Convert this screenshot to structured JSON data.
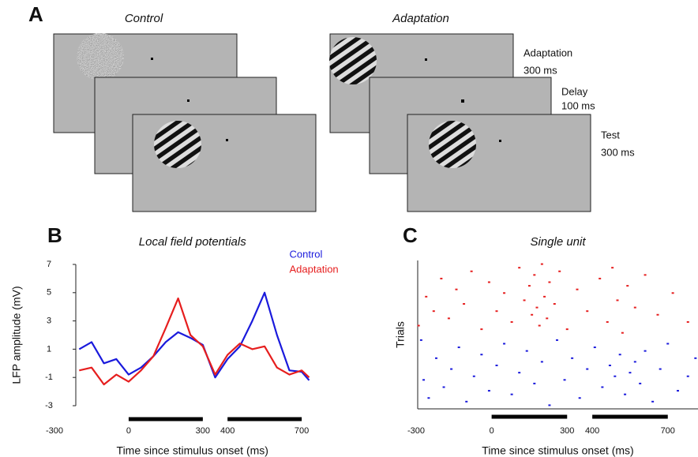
{
  "figure": {
    "panel_labels": [
      "A",
      "B",
      "C"
    ],
    "diagram": {
      "control_title": "Control",
      "adaptation_title": "Adaptation",
      "phases": [
        {
          "name": "Adaptation",
          "duration": "300 ms"
        },
        {
          "name": "Delay",
          "duration": "100 ms"
        },
        {
          "name": "Test",
          "duration": "300 ms"
        }
      ]
    }
  },
  "chart_data": [
    {
      "type": "line",
      "title": "Local field potentials",
      "x_label": "Time since stimulus onset (ms)",
      "y_label": "LFP amplitude (mV)",
      "x": [
        -200,
        -150,
        -100,
        -50,
        0,
        50,
        100,
        150,
        200,
        250,
        300,
        350,
        400,
        450,
        500,
        550,
        600,
        650,
        700,
        730
      ],
      "series": [
        {
          "name": "Control",
          "color": "#1a1adc",
          "values": [
            1.0,
            1.5,
            0,
            0.3,
            -0.8,
            -0.3,
            0.5,
            1.5,
            2.2,
            1.8,
            1.3,
            -1,
            0.3,
            1.2,
            3,
            5,
            2,
            -0.5,
            -0.6,
            -1.2
          ]
        },
        {
          "name": "Adaptation",
          "color": "#e61e1e",
          "values": [
            -0.5,
            -0.3,
            -1.5,
            -0.8,
            -1.3,
            -0.5,
            0.5,
            2.5,
            4.6,
            2,
            1.2,
            -0.8,
            0.6,
            1.4,
            1.0,
            1.2,
            -0.3,
            -0.8,
            -0.5,
            -1.0
          ]
        }
      ],
      "xlim": [
        -300,
        730
      ],
      "xticks": [
        -300,
        0,
        300,
        400,
        700
      ],
      "ylim": [
        -3,
        7
      ],
      "yticks": [
        -3,
        -1,
        1,
        3,
        5,
        7
      ],
      "stimulus_bars": [
        [
          0,
          300
        ],
        [
          400,
          700
        ]
      ],
      "legend": "top-right"
    },
    {
      "type": "scatter",
      "title": "Single unit",
      "x_label": "Time since stimulus onset (ms)",
      "y_label": "Trials",
      "xlim": [
        -300,
        820
      ],
      "xticks": [
        -300,
        0,
        300,
        400,
        700
      ],
      "ylim": [
        0,
        41
      ],
      "stimulus_bars": [
        [
          0,
          300
        ],
        [
          400,
          700
        ]
      ],
      "series": [
        {
          "color": "#e61e1e",
          "x": [
            -290,
            -260,
            -230,
            -200,
            -170,
            -140,
            -110,
            -80,
            -40,
            -10,
            20,
            50,
            80,
            110,
            130,
            150,
            160,
            170,
            180,
            190,
            200,
            210,
            220,
            230,
            250,
            270,
            300,
            340,
            380,
            430,
            460,
            480,
            500,
            520,
            540,
            570,
            610,
            660,
            720,
            780
          ],
          "values": [
            23,
            31,
            27,
            36,
            25,
            33,
            29,
            38,
            22,
            35,
            27,
            32,
            24,
            39,
            30,
            34,
            26,
            37,
            28,
            23,
            40,
            31,
            25,
            35,
            29,
            38,
            22,
            33,
            27,
            36,
            24,
            39,
            30,
            21,
            34,
            28,
            37,
            26,
            32,
            24
          ]
        },
        {
          "color": "#1a1adc",
          "x": [
            -280,
            -270,
            -250,
            -220,
            -190,
            -160,
            -130,
            -100,
            -70,
            -40,
            -10,
            20,
            50,
            80,
            110,
            140,
            170,
            200,
            230,
            260,
            290,
            320,
            350,
            380,
            410,
            440,
            470,
            490,
            510,
            530,
            550,
            570,
            590,
            610,
            640,
            670,
            700,
            740,
            780,
            810
          ],
          "values": [
            19,
            8,
            3,
            14,
            6,
            11,
            17,
            2,
            9,
            15,
            5,
            12,
            18,
            4,
            10,
            16,
            7,
            13,
            1,
            19,
            8,
            14,
            3,
            11,
            17,
            6,
            12,
            9,
            15,
            4,
            10,
            13,
            7,
            16,
            2,
            11,
            18,
            5,
            9,
            14
          ]
        }
      ]
    }
  ]
}
